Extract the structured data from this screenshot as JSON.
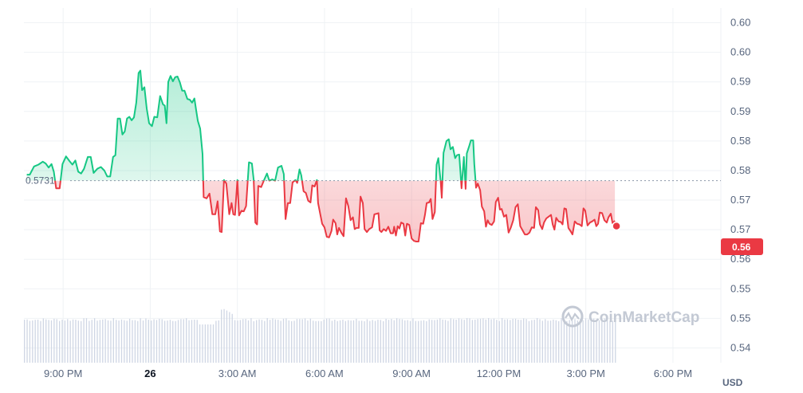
{
  "chart_data": {
    "type": "area",
    "title": "",
    "xlabel": "",
    "ylabel": "",
    "currency": "USD",
    "watermark": "CoinMarketCap",
    "reference_price_label": "0.5731",
    "reference_price": 0.5731,
    "current_price_label": "0.56",
    "current_price": 0.5654,
    "y_ticks": [
      "0.60",
      "0.60",
      "0.59",
      "0.59",
      "0.58",
      "0.58",
      "0.57",
      "0.57",
      "0.56",
      "0.55",
      "0.55",
      "0.54"
    ],
    "x_ticks": [
      "9:00 PM",
      "26",
      "3:00 AM",
      "6:00 AM",
      "9:00 AM",
      "12:00 PM",
      "3:00 PM",
      "6:00 PM"
    ],
    "x_hours": [
      0,
      3,
      6,
      9,
      12,
      15,
      18,
      21
    ],
    "x_bold": "26",
    "ylim": [
      0.5423,
      0.6023
    ],
    "xlim_hours": [
      -1.35,
      22.65
    ],
    "grid": true,
    "colors": {
      "up": "#16c784",
      "down": "#ea3943",
      "grid": "#eff2f5",
      "volume": "#cfd6e4"
    },
    "series": [
      {
        "values": [
          [
            -1.25,
            0.5741
          ],
          [
            -1.15,
            0.5741
          ],
          [
            -1.0,
            0.5755
          ],
          [
            -0.85,
            0.5758
          ],
          [
            -0.7,
            0.5763
          ],
          [
            -0.6,
            0.576
          ],
          [
            -0.5,
            0.5753
          ],
          [
            -0.4,
            0.5759
          ],
          [
            -0.32,
            0.5746
          ],
          [
            -0.24,
            0.5718
          ],
          [
            -0.12,
            0.5718
          ],
          [
            -0.02,
            0.5759
          ],
          [
            0.1,
            0.5772
          ],
          [
            0.22,
            0.5764
          ],
          [
            0.32,
            0.5758
          ],
          [
            0.42,
            0.5765
          ],
          [
            0.52,
            0.5746
          ],
          [
            0.62,
            0.5743
          ],
          [
            0.72,
            0.5751
          ],
          [
            0.85,
            0.5771
          ],
          [
            0.95,
            0.5771
          ],
          [
            1.05,
            0.5744
          ],
          [
            1.18,
            0.5751
          ],
          [
            1.3,
            0.5754
          ],
          [
            1.42,
            0.5748
          ],
          [
            1.52,
            0.5738
          ],
          [
            1.62,
            0.5738
          ],
          [
            1.72,
            0.5771
          ],
          [
            1.8,
            0.5774
          ],
          [
            1.88,
            0.5836
          ],
          [
            1.96,
            0.5836
          ],
          [
            2.04,
            0.5809
          ],
          [
            2.12,
            0.5814
          ],
          [
            2.2,
            0.5836
          ],
          [
            2.28,
            0.5839
          ],
          [
            2.36,
            0.5833
          ],
          [
            2.44,
            0.5838
          ],
          [
            2.52,
            0.5863
          ],
          [
            2.6,
            0.5913
          ],
          [
            2.66,
            0.5917
          ],
          [
            2.72,
            0.5884
          ],
          [
            2.8,
            0.5889
          ],
          [
            2.88,
            0.5853
          ],
          [
            2.96,
            0.5828
          ],
          [
            3.06,
            0.5823
          ],
          [
            3.14,
            0.5839
          ],
          [
            3.24,
            0.5838
          ],
          [
            3.34,
            0.5874
          ],
          [
            3.44,
            0.586
          ],
          [
            3.5,
            0.5858
          ],
          [
            3.56,
            0.5828
          ],
          [
            3.62,
            0.5898
          ],
          [
            3.7,
            0.5908
          ],
          [
            3.78,
            0.5899
          ],
          [
            3.86,
            0.5906
          ],
          [
            3.94,
            0.5907
          ],
          [
            4.02,
            0.5897
          ],
          [
            4.1,
            0.5883
          ],
          [
            4.18,
            0.5883
          ],
          [
            4.28,
            0.5869
          ],
          [
            4.36,
            0.5868
          ],
          [
            4.44,
            0.5863
          ],
          [
            4.52,
            0.587
          ],
          [
            4.58,
            0.585
          ],
          [
            4.64,
            0.5832
          ],
          [
            4.72,
            0.5819
          ],
          [
            4.8,
            0.5776
          ],
          [
            4.84,
            0.5703
          ],
          [
            4.94,
            0.5701
          ],
          [
            5.04,
            0.5709
          ],
          [
            5.14,
            0.5674
          ],
          [
            5.24,
            0.5674
          ],
          [
            5.32,
            0.5696
          ],
          [
            5.4,
            0.5645
          ],
          [
            5.46,
            0.5644
          ],
          [
            5.54,
            0.5732
          ],
          [
            5.62,
            0.5726
          ],
          [
            5.72,
            0.5674
          ],
          [
            5.8,
            0.5693
          ],
          [
            5.86,
            0.5674
          ],
          [
            5.92,
            0.5673
          ],
          [
            6.0,
            0.5732
          ],
          [
            6.06,
            0.5672
          ],
          [
            6.14,
            0.568
          ],
          [
            6.22,
            0.5679
          ],
          [
            6.3,
            0.5688
          ],
          [
            6.4,
            0.5762
          ],
          [
            6.5,
            0.576
          ],
          [
            6.56,
            0.5733
          ],
          [
            6.62,
            0.566
          ],
          [
            6.68,
            0.5657
          ],
          [
            6.72,
            0.5722
          ],
          [
            6.82,
            0.572
          ],
          [
            6.92,
            0.5732
          ],
          [
            7.02,
            0.5743
          ],
          [
            7.1,
            0.5731
          ],
          [
            7.2,
            0.5733
          ],
          [
            7.3,
            0.5731
          ],
          [
            7.4,
            0.5753
          ],
          [
            7.52,
            0.5756
          ],
          [
            7.6,
            0.5742
          ],
          [
            7.66,
            0.5666
          ],
          [
            7.74,
            0.5693
          ],
          [
            7.82,
            0.5693
          ],
          [
            7.9,
            0.5728
          ],
          [
            8.0,
            0.5732
          ],
          [
            8.06,
            0.5727
          ],
          [
            8.14,
            0.575
          ],
          [
            8.2,
            0.574
          ],
          [
            8.28,
            0.5713
          ],
          [
            8.36,
            0.571
          ],
          [
            8.44,
            0.5697
          ],
          [
            8.52,
            0.5694
          ],
          [
            8.58,
            0.5723
          ],
          [
            8.66,
            0.5721
          ],
          [
            8.74,
            0.5732
          ],
          [
            8.78,
            0.5693
          ],
          [
            8.86,
            0.5673
          ],
          [
            8.92,
            0.5658
          ],
          [
            9.0,
            0.5652
          ],
          [
            9.08,
            0.5636
          ],
          [
            9.16,
            0.5635
          ],
          [
            9.24,
            0.5646
          ],
          [
            9.3,
            0.5665
          ],
          [
            9.38,
            0.5659
          ],
          [
            9.44,
            0.564
          ],
          [
            9.5,
            0.5651
          ],
          [
            9.58,
            0.5643
          ],
          [
            9.66,
            0.5637
          ],
          [
            9.74,
            0.5701
          ],
          [
            9.82,
            0.5688
          ],
          [
            9.9,
            0.5664
          ],
          [
            9.98,
            0.5669
          ],
          [
            10.04,
            0.5649
          ],
          [
            10.1,
            0.5651
          ],
          [
            10.18,
            0.5651
          ],
          [
            10.24,
            0.5704
          ],
          [
            10.32,
            0.5693
          ],
          [
            10.38,
            0.5649
          ],
          [
            10.46,
            0.5644
          ],
          [
            10.54,
            0.5649
          ],
          [
            10.64,
            0.5652
          ],
          [
            10.72,
            0.5674
          ],
          [
            10.8,
            0.5675
          ],
          [
            10.86,
            0.5676
          ],
          [
            10.9,
            0.5647
          ],
          [
            10.96,
            0.5644
          ],
          [
            11.04,
            0.5649
          ],
          [
            11.12,
            0.5646
          ],
          [
            11.2,
            0.5653
          ],
          [
            11.28,
            0.5642
          ],
          [
            11.36,
            0.5642
          ],
          [
            11.4,
            0.5653
          ],
          [
            11.46,
            0.5638
          ],
          [
            11.52,
            0.5654
          ],
          [
            11.58,
            0.565
          ],
          [
            11.64,
            0.566
          ],
          [
            11.72,
            0.5658
          ],
          [
            11.78,
            0.5638
          ],
          [
            11.84,
            0.5658
          ],
          [
            11.92,
            0.5656
          ],
          [
            12.0,
            0.5633
          ],
          [
            12.08,
            0.5629
          ],
          [
            12.16,
            0.5628
          ],
          [
            12.24,
            0.5628
          ],
          [
            12.32,
            0.5659
          ],
          [
            12.4,
            0.5658
          ],
          [
            12.46,
            0.5673
          ],
          [
            12.52,
            0.5693
          ],
          [
            12.6,
            0.5694
          ],
          [
            12.66,
            0.57
          ],
          [
            12.72,
            0.5666
          ],
          [
            12.8,
            0.5678
          ],
          [
            12.86,
            0.5758
          ],
          [
            12.92,
            0.5769
          ],
          [
            13.0,
            0.573
          ],
          [
            13.04,
            0.5702
          ],
          [
            13.1,
            0.5778
          ],
          [
            13.2,
            0.5798
          ],
          [
            13.28,
            0.5801
          ],
          [
            13.34,
            0.5784
          ],
          [
            13.42,
            0.5788
          ],
          [
            13.5,
            0.5769
          ],
          [
            13.56,
            0.5774
          ],
          [
            13.64,
            0.5775
          ],
          [
            13.72,
            0.5718
          ],
          [
            13.8,
            0.5771
          ],
          [
            13.86,
            0.5717
          ],
          [
            13.9,
            0.5777
          ],
          [
            13.98,
            0.5789
          ],
          [
            14.04,
            0.5799
          ],
          [
            14.12,
            0.5799
          ],
          [
            14.16,
            0.5759
          ],
          [
            14.22,
            0.5719
          ],
          [
            14.28,
            0.5726
          ],
          [
            14.36,
            0.5715
          ],
          [
            14.42,
            0.5687
          ],
          [
            14.5,
            0.5679
          ],
          [
            14.56,
            0.5653
          ],
          [
            14.62,
            0.5664
          ],
          [
            14.68,
            0.5658
          ],
          [
            14.76,
            0.5656
          ],
          [
            14.84,
            0.5662
          ],
          [
            14.9,
            0.5695
          ],
          [
            14.98,
            0.5702
          ],
          [
            15.04,
            0.5682
          ],
          [
            15.1,
            0.5683
          ],
          [
            15.18,
            0.567
          ],
          [
            15.26,
            0.5673
          ],
          [
            15.34,
            0.5643
          ],
          [
            15.42,
            0.5652
          ],
          [
            15.5,
            0.5664
          ],
          [
            15.58,
            0.5686
          ],
          [
            15.66,
            0.5691
          ],
          [
            15.74,
            0.5654
          ],
          [
            15.82,
            0.5647
          ],
          [
            15.9,
            0.564
          ],
          [
            15.98,
            0.564
          ],
          [
            16.06,
            0.5643
          ],
          [
            16.14,
            0.5652
          ],
          [
            16.22,
            0.5651
          ],
          [
            16.28,
            0.5686
          ],
          [
            16.36,
            0.5681
          ],
          [
            16.42,
            0.5657
          ],
          [
            16.5,
            0.5649
          ],
          [
            16.56,
            0.566
          ],
          [
            16.64,
            0.5667
          ],
          [
            16.72,
            0.567
          ],
          [
            16.8,
            0.5673
          ],
          [
            16.86,
            0.5657
          ],
          [
            16.92,
            0.5648
          ],
          [
            16.98,
            0.5668
          ],
          [
            17.06,
            0.5662
          ],
          [
            17.14,
            0.5661
          ],
          [
            17.2,
            0.5657
          ],
          [
            17.26,
            0.5684
          ],
          [
            17.32,
            0.5683
          ],
          [
            17.4,
            0.5651
          ],
          [
            17.48,
            0.5645
          ],
          [
            17.54,
            0.564
          ],
          [
            17.62,
            0.5662
          ],
          [
            17.7,
            0.5658
          ],
          [
            17.78,
            0.5657
          ],
          [
            17.86,
            0.5654
          ],
          [
            17.92,
            0.5684
          ],
          [
            17.98,
            0.568
          ],
          [
            18.06,
            0.5655
          ],
          [
            18.14,
            0.566
          ],
          [
            18.22,
            0.5662
          ],
          [
            18.3,
            0.5665
          ],
          [
            18.36,
            0.5654
          ],
          [
            18.42,
            0.5658
          ],
          [
            18.48,
            0.5677
          ],
          [
            18.56,
            0.5676
          ],
          [
            18.64,
            0.5664
          ],
          [
            18.72,
            0.566
          ],
          [
            18.78,
            0.5669
          ],
          [
            18.86,
            0.5675
          ],
          [
            18.92,
            0.5659
          ],
          [
            19.0,
            0.5663
          ]
        ]
      }
    ],
    "volume_bars": 220
  }
}
